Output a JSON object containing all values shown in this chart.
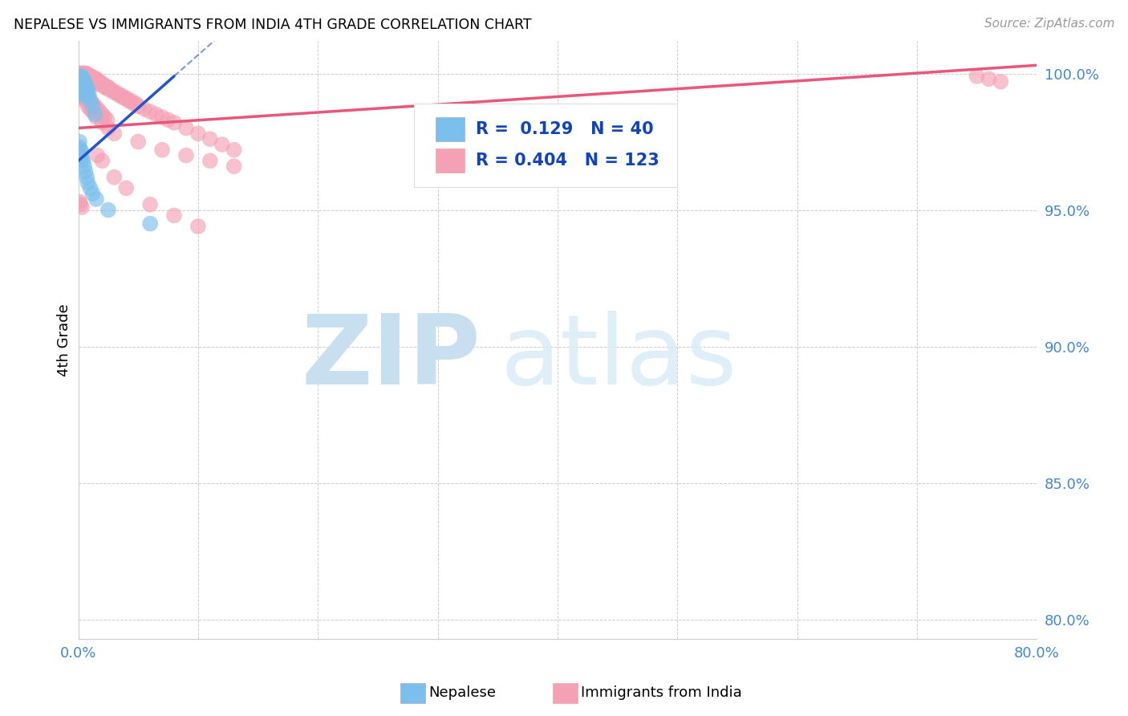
{
  "title": "NEPALESE VS IMMIGRANTS FROM INDIA 4TH GRADE CORRELATION CHART",
  "source": "Source: ZipAtlas.com",
  "ylabel": "4th Grade",
  "ytick_values": [
    0.8,
    0.85,
    0.9,
    0.95,
    1.0
  ],
  "xlim": [
    0.0,
    0.8
  ],
  "ylim": [
    0.793,
    1.012
  ],
  "legend1_label": "Nepalese",
  "legend2_label": "Immigrants from India",
  "R1": 0.129,
  "N1": 40,
  "R2": 0.404,
  "N2": 123,
  "color_blue": "#7BBFED",
  "color_pink": "#F4A0B5",
  "line_blue": "#2255CC",
  "line_pink": "#E8567A",
  "blue_trendline_x0": 0.0,
  "blue_trendline_y0": 0.968,
  "blue_trendline_x1": 0.08,
  "blue_trendline_y1": 0.999,
  "pink_trendline_x0": 0.0,
  "pink_trendline_y0": 0.98,
  "pink_trendline_x1": 0.8,
  "pink_trendline_y1": 1.003,
  "scatter_blue_x": [
    0.001,
    0.001,
    0.002,
    0.002,
    0.002,
    0.002,
    0.003,
    0.003,
    0.003,
    0.003,
    0.004,
    0.004,
    0.004,
    0.005,
    0.005,
    0.006,
    0.006,
    0.007,
    0.007,
    0.008,
    0.009,
    0.01,
    0.012,
    0.014,
    0.001,
    0.001,
    0.002,
    0.002,
    0.003,
    0.003,
    0.004,
    0.005,
    0.006,
    0.007,
    0.008,
    0.01,
    0.012,
    0.015,
    0.025,
    0.06
  ],
  "scatter_blue_y": [
    0.999,
    0.997,
    0.998,
    0.996,
    0.994,
    0.992,
    0.999,
    0.997,
    0.995,
    0.993,
    0.998,
    0.996,
    0.994,
    0.997,
    0.995,
    0.996,
    0.994,
    0.995,
    0.993,
    0.994,
    0.992,
    0.99,
    0.988,
    0.985,
    0.975,
    0.973,
    0.972,
    0.97,
    0.971,
    0.969,
    0.968,
    0.966,
    0.964,
    0.962,
    0.96,
    0.958,
    0.956,
    0.954,
    0.95,
    0.945
  ],
  "scatter_pink_x": [
    0.001,
    0.001,
    0.002,
    0.002,
    0.002,
    0.003,
    0.003,
    0.003,
    0.004,
    0.004,
    0.004,
    0.005,
    0.005,
    0.005,
    0.006,
    0.006,
    0.006,
    0.007,
    0.007,
    0.007,
    0.008,
    0.008,
    0.008,
    0.009,
    0.009,
    0.01,
    0.01,
    0.01,
    0.011,
    0.011,
    0.012,
    0.012,
    0.013,
    0.013,
    0.014,
    0.014,
    0.015,
    0.015,
    0.016,
    0.016,
    0.017,
    0.018,
    0.019,
    0.02,
    0.021,
    0.022,
    0.023,
    0.024,
    0.025,
    0.026,
    0.028,
    0.03,
    0.032,
    0.034,
    0.036,
    0.038,
    0.04,
    0.042,
    0.044,
    0.046,
    0.048,
    0.05,
    0.055,
    0.06,
    0.065,
    0.07,
    0.075,
    0.08,
    0.09,
    0.1,
    0.11,
    0.12,
    0.13,
    0.002,
    0.003,
    0.004,
    0.005,
    0.006,
    0.007,
    0.008,
    0.009,
    0.01,
    0.012,
    0.014,
    0.016,
    0.018,
    0.02,
    0.022,
    0.024,
    0.001,
    0.001,
    0.002,
    0.002,
    0.003,
    0.003,
    0.004,
    0.005,
    0.006,
    0.008,
    0.01,
    0.012,
    0.015,
    0.02,
    0.025,
    0.03,
    0.05,
    0.07,
    0.09,
    0.11,
    0.13,
    0.016,
    0.02,
    0.03,
    0.04,
    0.06,
    0.08,
    0.1,
    0.75,
    0.76,
    0.77,
    0.001,
    0.002,
    0.003
  ],
  "scatter_pink_y": [
    1.0,
    0.999,
    1.0,
    0.999,
    0.998,
    1.0,
    0.999,
    0.998,
    1.0,
    0.999,
    0.998,
    1.0,
    0.999,
    0.998,
    1.0,
    0.999,
    0.998,
    1.0,
    0.999,
    0.998,
    0.999,
    0.998,
    0.997,
    0.999,
    0.998,
    0.999,
    0.998,
    0.997,
    0.999,
    0.998,
    0.998,
    0.997,
    0.998,
    0.997,
    0.998,
    0.997,
    0.998,
    0.997,
    0.997,
    0.996,
    0.997,
    0.997,
    0.996,
    0.996,
    0.996,
    0.995,
    0.995,
    0.995,
    0.995,
    0.994,
    0.994,
    0.993,
    0.993,
    0.992,
    0.992,
    0.991,
    0.991,
    0.99,
    0.99,
    0.989,
    0.989,
    0.988,
    0.987,
    0.986,
    0.985,
    0.984,
    0.983,
    0.982,
    0.98,
    0.978,
    0.976,
    0.974,
    0.972,
    0.996,
    0.995,
    0.994,
    0.994,
    0.993,
    0.992,
    0.991,
    0.991,
    0.99,
    0.989,
    0.988,
    0.987,
    0.986,
    0.985,
    0.984,
    0.983,
    0.997,
    0.995,
    0.996,
    0.994,
    0.995,
    0.993,
    0.992,
    0.991,
    0.99,
    0.988,
    0.987,
    0.986,
    0.984,
    0.982,
    0.98,
    0.978,
    0.975,
    0.972,
    0.97,
    0.968,
    0.966,
    0.97,
    0.968,
    0.962,
    0.958,
    0.952,
    0.948,
    0.944,
    0.999,
    0.998,
    0.997,
    0.953,
    0.952,
    0.951
  ],
  "watermark_top": "ZIP",
  "watermark_bottom": "atlas",
  "watermark_color": "#C8DFEF",
  "background_color": "#FFFFFF",
  "grid_color": "#CCCCCC"
}
